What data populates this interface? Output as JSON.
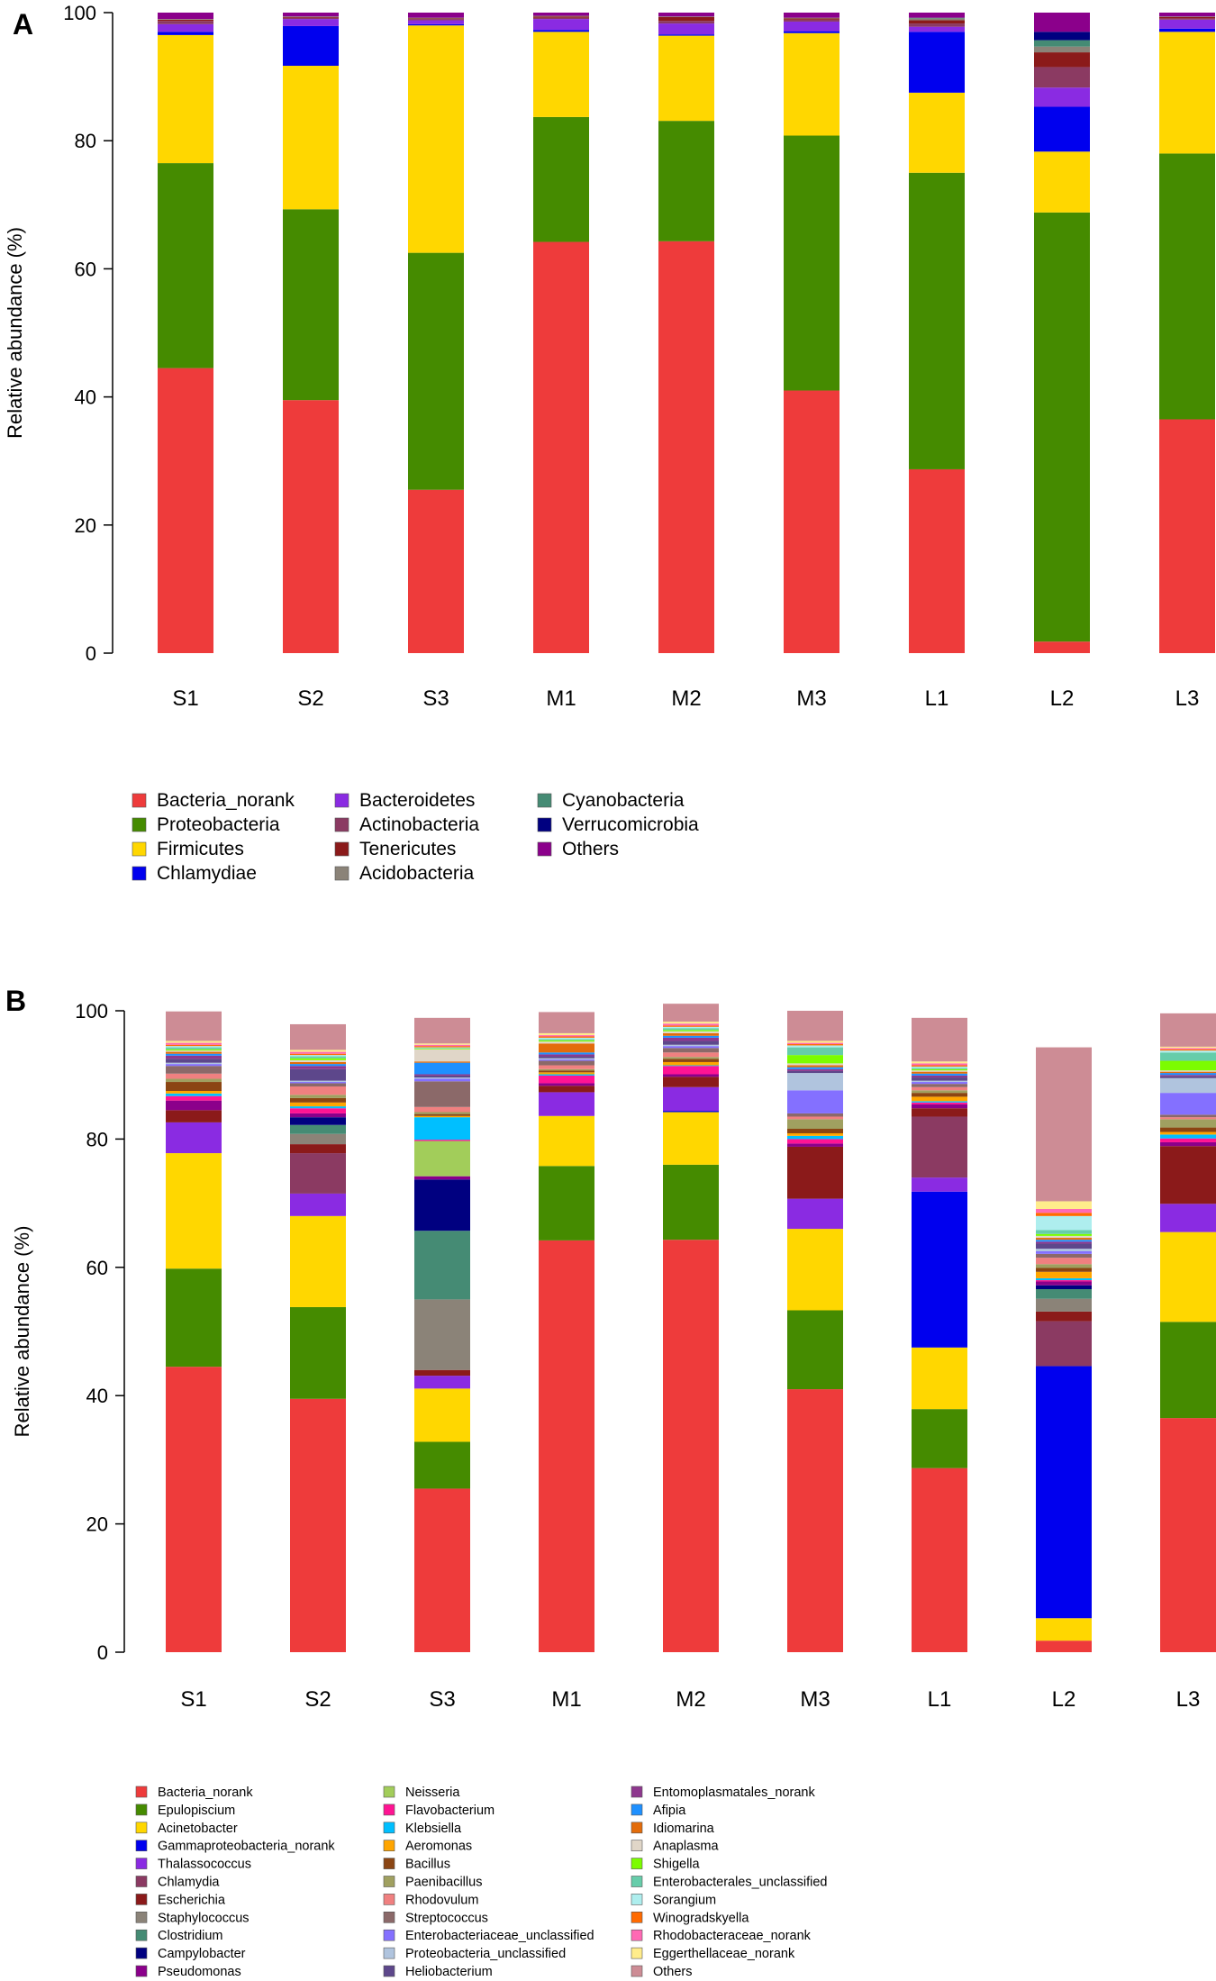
{
  "panel_a": {
    "label": "A",
    "ylabel": "Relative abundance (%)"
  },
  "panel_b": {
    "label": "B",
    "ylabel": "Relative abundance (%)"
  },
  "colors": {
    "Bacteria_norank": "#ee3b3b",
    "Proteobacteria": "#458b00",
    "Firmicutes": "#ffd700",
    "Chlamydiae": "#0000ee",
    "Bacteroidetes": "#8a2be2",
    "Actinobacteria": "#8b3a62",
    "Tenericutes": "#8b1a1a",
    "Acidobacteria": "#8b8378",
    "Cyanobacteria": "#458b74",
    "Verrucomicrobia": "#000080",
    "Others_A": "#8b008b",
    "Epulopiscium": "#458b00",
    "Acinetobacter": "#ffd700",
    "Gammaproteobacteria_norank": "#0000ee",
    "Thalassococcus": "#8a2be2",
    "Chlamydia": "#8b3a62",
    "Escherichia": "#8b1a1a",
    "Staphylococcus": "#8b8378",
    "Clostridium": "#458b74",
    "Campylobacter": "#000080",
    "Pseudomonas": "#8b008b",
    "Neisseria": "#a2cd5a",
    "Flavobacterium": "#ff1493",
    "Klebsiella": "#00bfff",
    "Aeromonas": "#ffa500",
    "Bacillus": "#8b4513",
    "Paenibacillus": "#a0a060",
    "Rhodovulum": "#f08080",
    "Streptococcus": "#8b6969",
    "Enterobacteriaceae_unclassified": "#8470ff",
    "Proteobacteria_unclassified": "#b0c4de",
    "Heliobacterium": "#5d478b",
    "Entomoplasmatales_norank": "#8e388e",
    "Afipia": "#1e90ff",
    "Idiomarina": "#e36c0a",
    "Anaplasma": "#e0d6c8",
    "Shigella": "#7cfc00",
    "Enterobacterales_unclassified": "#66cdaa",
    "Sorangium": "#aeeeee",
    "Winogradskyella": "#ff6a00",
    "Rhodobacteraceae_norank": "#ff69b4",
    "Eggerthellaceae_norank": "#ffec8b",
    "Others_B": "#cd8c95"
  },
  "chart_data": [
    {
      "type": "bar",
      "stacked": true,
      "title": "A",
      "xlabel": "",
      "ylabel": "Relative abundance (%)",
      "ylim": [
        0,
        100
      ],
      "yticks": [
        0,
        20,
        40,
        60,
        80,
        100
      ],
      "categories": [
        "S1",
        "S2",
        "S3",
        "M1",
        "M2",
        "M3",
        "L1",
        "L2",
        "L3"
      ],
      "series": [
        {
          "name": "Bacteria_norank",
          "color_key": "Bacteria_norank",
          "values": [
            44.5,
            39.5,
            25.5,
            64.2,
            64.3,
            41.0,
            28.7,
            1.8,
            36.5
          ]
        },
        {
          "name": "Proteobacteria",
          "color_key": "Proteobacteria",
          "values": [
            32.0,
            29.8,
            37.0,
            19.5,
            18.8,
            39.8,
            46.3,
            67.0,
            41.5
          ]
        },
        {
          "name": "Firmicutes",
          "color_key": "Firmicutes",
          "values": [
            20.0,
            22.4,
            35.5,
            13.3,
            13.3,
            16.0,
            12.5,
            9.5,
            19.0
          ]
        },
        {
          "name": "Chlamydiae",
          "color_key": "Chlamydiae",
          "values": [
            0.5,
            6.2,
            0.2,
            0.3,
            0.2,
            0.3,
            9.5,
            7.0,
            0.5
          ]
        },
        {
          "name": "Bacteroidetes",
          "color_key": "Bacteroidetes",
          "values": [
            1.2,
            1.1,
            0.6,
            1.7,
            1.7,
            1.5,
            0.8,
            3.0,
            1.4
          ]
        },
        {
          "name": "Actinobacteria",
          "color_key": "Actinobacteria",
          "values": [
            0.5,
            0.2,
            0.2,
            0.2,
            0.4,
            0.3,
            0.5,
            3.2,
            0.2
          ]
        },
        {
          "name": "Tenericutes",
          "color_key": "Tenericutes",
          "values": [
            0.2,
            0.1,
            0.1,
            0.2,
            0.6,
            0.2,
            0.5,
            2.3,
            0.2
          ]
        },
        {
          "name": "Acidobacteria",
          "color_key": "Acidobacteria",
          "values": [
            0.1,
            0.1,
            0.1,
            0.1,
            0.1,
            0.1,
            0.3,
            0.9,
            0.1
          ]
        },
        {
          "name": "Cyanobacteria",
          "color_key": "Cyanobacteria",
          "values": [
            0.0,
            0.0,
            0.0,
            0.0,
            0.0,
            0.0,
            0.1,
            1.0,
            0.0
          ]
        },
        {
          "name": "Verrucomicrobia",
          "color_key": "Verrucomicrobia",
          "values": [
            0.0,
            0.0,
            0.0,
            0.0,
            0.0,
            0.0,
            0.0,
            1.3,
            0.0
          ]
        },
        {
          "name": "Others",
          "color_key": "Others_A",
          "values": [
            1.0,
            0.6,
            0.8,
            0.5,
            0.6,
            0.8,
            0.8,
            3.0,
            0.6
          ]
        }
      ],
      "legend": [
        {
          "label": "Bacteria_norank",
          "color_key": "Bacteria_norank"
        },
        {
          "label": "Proteobacteria",
          "color_key": "Proteobacteria"
        },
        {
          "label": "Firmicutes",
          "color_key": "Firmicutes"
        },
        {
          "label": "Chlamydiae",
          "color_key": "Chlamydiae"
        },
        {
          "label": "Bacteroidetes",
          "color_key": "Bacteroidetes"
        },
        {
          "label": "Actinobacteria",
          "color_key": "Actinobacteria"
        },
        {
          "label": "Tenericutes",
          "color_key": "Tenericutes"
        },
        {
          "label": "Acidobacteria",
          "color_key": "Acidobacteria"
        },
        {
          "label": "Cyanobacteria",
          "color_key": "Cyanobacteria"
        },
        {
          "label": "Verrucomicrobia",
          "color_key": "Verrucomicrobia"
        },
        {
          "label": "Others",
          "color_key": "Others_A"
        }
      ],
      "legend_rows": 4,
      "legend_position": "bottom-left"
    },
    {
      "type": "bar",
      "stacked": true,
      "title": "B",
      "xlabel": "",
      "ylabel": "Relative abundance (%)",
      "ylim": [
        0,
        100
      ],
      "yticks": [
        0,
        20,
        40,
        60,
        80,
        100
      ],
      "categories": [
        "S1",
        "S2",
        "S3",
        "M1",
        "M2",
        "M3",
        "L1",
        "L2",
        "L3"
      ],
      "series": [
        {
          "name": "Bacteria_norank",
          "color_key": "Bacteria_norank",
          "values": [
            44.5,
            39.5,
            25.5,
            64.2,
            64.3,
            41.0,
            28.7,
            1.8,
            36.5
          ]
        },
        {
          "name": "Epulopiscium",
          "color_key": "Epulopiscium",
          "values": [
            15.3,
            14.3,
            7.3,
            11.6,
            11.7,
            12.3,
            9.2,
            0.0,
            15.0
          ]
        },
        {
          "name": "Acinetobacter",
          "color_key": "Acinetobacter",
          "values": [
            18.0,
            14.2,
            8.3,
            7.8,
            8.2,
            12.7,
            9.6,
            3.5,
            14.0
          ]
        },
        {
          "name": "Gammaproteobacteria_norank",
          "color_key": "Gammaproteobacteria_norank",
          "values": [
            0.0,
            0.0,
            0.0,
            0.0,
            0.2,
            0.0,
            24.3,
            39.3,
            0.0
          ]
        },
        {
          "name": "Thalassococcus",
          "color_key": "Thalassococcus",
          "values": [
            4.8,
            3.5,
            2.0,
            3.7,
            3.7,
            4.7,
            2.2,
            0.0,
            4.4
          ]
        },
        {
          "name": "Chlamydia",
          "color_key": "Chlamydia",
          "values": [
            0.0,
            6.3,
            0.0,
            0.0,
            0.0,
            0.0,
            9.5,
            7.0,
            0.0
          ]
        },
        {
          "name": "Escherichia",
          "color_key": "Escherichia",
          "values": [
            1.9,
            1.4,
            0.9,
            1.0,
            1.6,
            8.1,
            1.3,
            1.5,
            9.0
          ]
        },
        {
          "name": "Staphylococcus",
          "color_key": "Staphylococcus",
          "values": [
            0.0,
            1.6,
            11.0,
            0.0,
            0.0,
            0.0,
            0.0,
            2.0,
            0.0
          ]
        },
        {
          "name": "Clostridium",
          "color_key": "Clostridium",
          "values": [
            0.0,
            1.4,
            10.7,
            0.0,
            0.0,
            0.0,
            0.0,
            1.5,
            0.0
          ]
        },
        {
          "name": "Campylobacter",
          "color_key": "Campylobacter",
          "values": [
            0.0,
            1.2,
            8.0,
            0.0,
            0.0,
            0.0,
            0.0,
            0.6,
            0.0
          ]
        },
        {
          "name": "Pseudomonas",
          "color_key": "Pseudomonas",
          "values": [
            1.5,
            0.6,
            0.5,
            0.4,
            0.4,
            0.5,
            0.6,
            0.6,
            0.6
          ]
        },
        {
          "name": "Neisseria",
          "color_key": "Neisseria",
          "values": [
            0.0,
            0.0,
            5.5,
            0.0,
            0.0,
            0.0,
            0.0,
            0.0,
            0.0
          ]
        },
        {
          "name": "Flavobacterium",
          "color_key": "Flavobacterium",
          "values": [
            0.7,
            0.8,
            0.2,
            1.2,
            1.3,
            0.7,
            0.3,
            0.2,
            0.6
          ]
        },
        {
          "name": "Klebsiella",
          "color_key": "Klebsiella",
          "values": [
            0.4,
            0.3,
            3.5,
            0.2,
            0.1,
            0.5,
            0.2,
            0.3,
            0.6
          ]
        },
        {
          "name": "Aeromonas",
          "color_key": "Aeromonas",
          "values": [
            0.4,
            0.6,
            0.2,
            0.3,
            0.5,
            0.4,
            0.7,
            1.0,
            0.4
          ]
        },
        {
          "name": "Bacillus",
          "color_key": "Bacillus",
          "values": [
            1.4,
            0.7,
            0.3,
            0.3,
            0.5,
            0.7,
            0.6,
            0.6,
            0.7
          ]
        },
        {
          "name": "Paenibacillus",
          "color_key": "Paenibacillus",
          "values": [
            0.5,
            0.5,
            0.3,
            0.2,
            0.3,
            1.5,
            0.4,
            0.6,
            1.3
          ]
        },
        {
          "name": "Rhodovulum",
          "color_key": "Rhodovulum",
          "values": [
            0.8,
            1.3,
            0.8,
            0.6,
            0.7,
            0.4,
            0.5,
            1.0,
            0.3
          ]
        },
        {
          "name": "Streptococcus",
          "color_key": "Streptococcus",
          "values": [
            1.2,
            0.5,
            4.0,
            0.7,
            0.7,
            0.5,
            0.5,
            0.6,
            0.4
          ]
        },
        {
          "name": "Enterobacteriaceae_unclassified",
          "color_key": "Enterobacteriaceae_unclassified",
          "values": [
            0.3,
            0.2,
            0.4,
            0.2,
            0.3,
            3.6,
            0.3,
            0.4,
            3.4
          ]
        },
        {
          "name": "Proteobacteria_unclassified",
          "color_key": "Proteobacteria_unclassified",
          "values": [
            0.2,
            0.2,
            0.2,
            0.2,
            0.2,
            2.7,
            0.2,
            0.4,
            2.3
          ]
        },
        {
          "name": "Heliobacterium",
          "color_key": "Heliobacterium",
          "values": [
            0.6,
            1.8,
            0.3,
            0.3,
            0.6,
            0.3,
            0.5,
            0.8,
            0.3
          ]
        },
        {
          "name": "Entomoplasmatales_norank",
          "color_key": "Entomoplasmatales_norank",
          "values": [
            0.5,
            0.5,
            0.2,
            0.3,
            0.5,
            0.3,
            0.3,
            0.3,
            0.2
          ]
        },
        {
          "name": "Afipia",
          "color_key": "Afipia",
          "values": [
            0.3,
            0.3,
            1.8,
            0.3,
            0.3,
            0.3,
            0.3,
            0.3,
            0.3
          ]
        },
        {
          "name": "Idiomarina",
          "color_key": "Idiomarina",
          "values": [
            0.3,
            0.3,
            0.2,
            1.4,
            0.4,
            0.3,
            0.3,
            0.3,
            0.2
          ]
        },
        {
          "name": "Anaplasma",
          "color_key": "Anaplasma",
          "values": [
            0.2,
            0.3,
            1.9,
            0.3,
            0.3,
            0.3,
            0.2,
            0.3,
            0.2
          ]
        },
        {
          "name": "Shigella",
          "color_key": "Shigella",
          "values": [
            0.2,
            0.3,
            0.1,
            0.2,
            0.2,
            1.3,
            0.2,
            0.3,
            1.5
          ]
        },
        {
          "name": "Enterobacterales_unclassified",
          "color_key": "Enterobacterales_unclassified",
          "values": [
            0.3,
            0.3,
            0.1,
            0.2,
            0.3,
            1.2,
            0.2,
            0.6,
            1.3
          ]
        },
        {
          "name": "Sorangium",
          "color_key": "Sorangium",
          "values": [
            0.2,
            0.2,
            0.1,
            0.2,
            0.2,
            0.3,
            0.2,
            2.2,
            0.3
          ]
        },
        {
          "name": "Winogradskyella",
          "color_key": "Winogradskyella",
          "values": [
            0.2,
            0.2,
            0.2,
            0.2,
            0.2,
            0.2,
            0.2,
            0.5,
            0.2
          ]
        },
        {
          "name": "Rhodobacteraceae_norank",
          "color_key": "Rhodobacteraceae_norank",
          "values": [
            0.3,
            0.3,
            0.2,
            0.2,
            0.3,
            0.2,
            0.3,
            0.6,
            0.2
          ]
        },
        {
          "name": "Eggerthellaceae_norank",
          "color_key": "Eggerthellaceae_norank",
          "values": [
            0.3,
            0.3,
            0.2,
            0.3,
            0.3,
            0.3,
            0.3,
            1.2,
            0.2
          ]
        },
        {
          "name": "Others",
          "color_key": "Others_B",
          "values": [
            4.6,
            4.0,
            4.0,
            3.3,
            2.8,
            4.7,
            6.8,
            24.0,
            5.2
          ]
        }
      ],
      "legend": [
        {
          "label": "Bacteria_norank",
          "color_key": "Bacteria_norank"
        },
        {
          "label": "Epulopiscium",
          "color_key": "Epulopiscium"
        },
        {
          "label": "Acinetobacter",
          "color_key": "Acinetobacter"
        },
        {
          "label": "Gammaproteobacteria_norank",
          "color_key": "Gammaproteobacteria_norank"
        },
        {
          "label": "Thalassococcus",
          "color_key": "Thalassococcus"
        },
        {
          "label": "Chlamydia",
          "color_key": "Chlamydia"
        },
        {
          "label": "Escherichia",
          "color_key": "Escherichia"
        },
        {
          "label": "Staphylococcus",
          "color_key": "Staphylococcus"
        },
        {
          "label": "Clostridium",
          "color_key": "Clostridium"
        },
        {
          "label": "Campylobacter",
          "color_key": "Campylobacter"
        },
        {
          "label": "Pseudomonas",
          "color_key": "Pseudomonas"
        },
        {
          "label": "Neisseria",
          "color_key": "Neisseria"
        },
        {
          "label": "Flavobacterium",
          "color_key": "Flavobacterium"
        },
        {
          "label": "Klebsiella",
          "color_key": "Klebsiella"
        },
        {
          "label": "Aeromonas",
          "color_key": "Aeromonas"
        },
        {
          "label": "Bacillus",
          "color_key": "Bacillus"
        },
        {
          "label": "Paenibacillus",
          "color_key": "Paenibacillus"
        },
        {
          "label": "Rhodovulum",
          "color_key": "Rhodovulum"
        },
        {
          "label": "Streptococcus",
          "color_key": "Streptococcus"
        },
        {
          "label": "Enterobacteriaceae_unclassified",
          "color_key": "Enterobacteriaceae_unclassified"
        },
        {
          "label": "Proteobacteria_unclassified",
          "color_key": "Proteobacteria_unclassified"
        },
        {
          "label": "Heliobacterium",
          "color_key": "Heliobacterium"
        },
        {
          "label": "Entomoplasmatales_norank",
          "color_key": "Entomoplasmatales_norank"
        },
        {
          "label": "Afipia",
          "color_key": "Afipia"
        },
        {
          "label": "Idiomarina",
          "color_key": "Idiomarina"
        },
        {
          "label": "Anaplasma",
          "color_key": "Anaplasma"
        },
        {
          "label": "Shigella",
          "color_key": "Shigella"
        },
        {
          "label": "Enterobacterales_unclassified",
          "color_key": "Enterobacterales_unclassified"
        },
        {
          "label": "Sorangium",
          "color_key": "Sorangium"
        },
        {
          "label": "Winogradskyella",
          "color_key": "Winogradskyella"
        },
        {
          "label": "Rhodobacteraceae_norank",
          "color_key": "Rhodobacteraceae_norank"
        },
        {
          "label": "Eggerthellaceae_norank",
          "color_key": "Eggerthellaceae_norank"
        },
        {
          "label": "Others",
          "color_key": "Others_B"
        }
      ],
      "legend_rows": 11,
      "legend_position": "bottom-left"
    }
  ]
}
